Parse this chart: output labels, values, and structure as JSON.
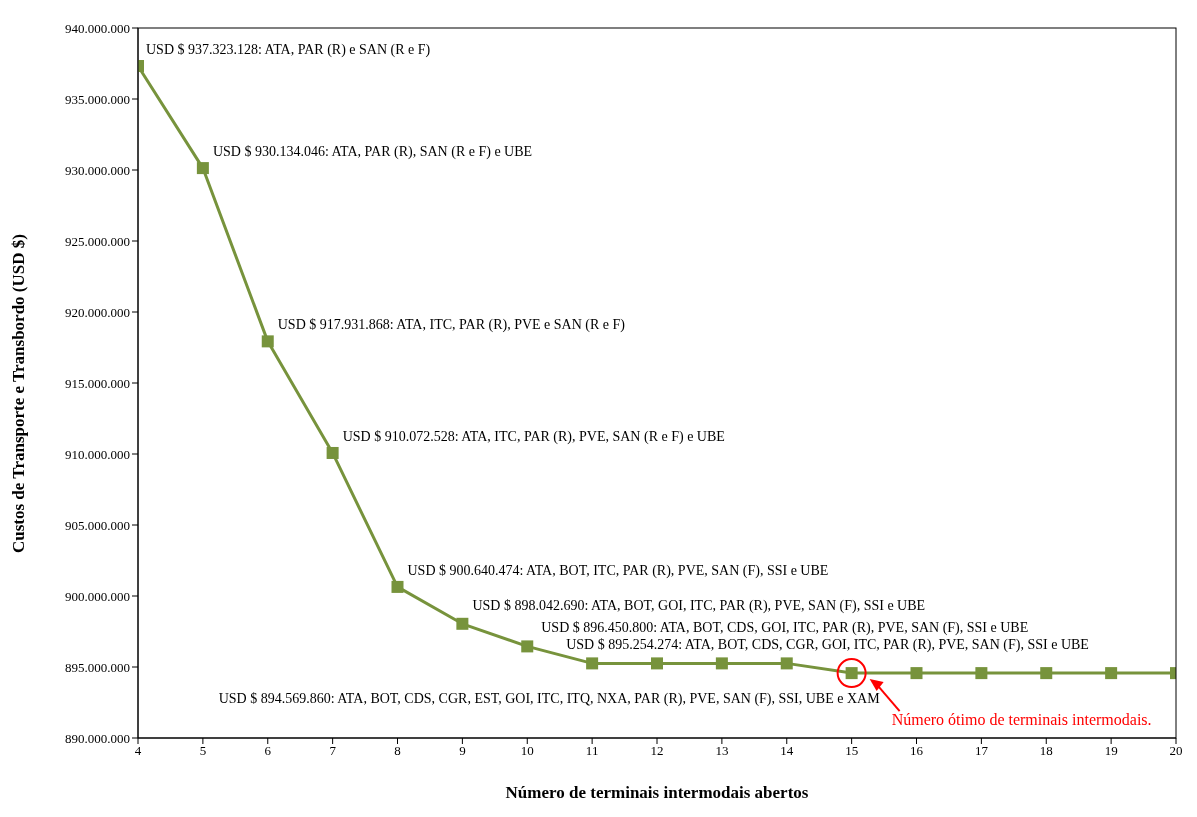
{
  "chart_data": {
    "type": "line",
    "xlabel": "Número de terminais intermodais abertos",
    "ylabel": "Custos de Transporte e Transbordo (USD $)",
    "x": [
      4,
      5,
      6,
      7,
      8,
      9,
      10,
      11,
      12,
      13,
      14,
      15,
      16,
      17,
      18,
      19,
      20
    ],
    "series": [
      {
        "color": "#77933c",
        "values": [
          937323128,
          930134046,
          917931868,
          910072528,
          900640474,
          898042690,
          896450800,
          895254274,
          895254274,
          895254274,
          895254274,
          894569860,
          894569860,
          894569860,
          894569860,
          894569860,
          894569860
        ]
      }
    ],
    "xlim": [
      4,
      20
    ],
    "xticks": [
      4,
      5,
      6,
      7,
      8,
      9,
      10,
      11,
      12,
      13,
      14,
      15,
      16,
      17,
      18,
      19,
      20
    ],
    "ylim": [
      890000000,
      940000000
    ],
    "yticks": [
      {
        "value": 890000000,
        "label": "890.000.000"
      },
      {
        "value": 895000000,
        "label": "895.000.000"
      },
      {
        "value": 900000000,
        "label": "900.000.000"
      },
      {
        "value": 905000000,
        "label": "905.000.000"
      },
      {
        "value": 910000000,
        "label": "910.000.000"
      },
      {
        "value": 915000000,
        "label": "915.000.000"
      },
      {
        "value": 920000000,
        "label": "920.000.000"
      },
      {
        "value": 925000000,
        "label": "925.000.000"
      },
      {
        "value": 930000000,
        "label": "930.000.000"
      },
      {
        "value": 935000000,
        "label": "935.000.000"
      },
      {
        "value": 940000000,
        "label": "940.000.000"
      }
    ],
    "marker": "square",
    "line_style": "solid",
    "grid": false,
    "annotations": [
      {
        "text": "USD $ 937.323.128: ATA, PAR (R) e SAN (R e F)",
        "x": 4,
        "y": 937323128
      },
      {
        "text": "USD $ 930.134.046: ATA, PAR (R), SAN (R e F) e UBE",
        "x": 5,
        "y": 930134046
      },
      {
        "text": "USD $ 917.931.868: ATA, ITC, PAR (R), PVE e SAN (R e F)",
        "x": 6,
        "y": 917931868
      },
      {
        "text": "USD $ 910.072.528: ATA, ITC, PAR (R), PVE, SAN (R e F) e UBE",
        "x": 7,
        "y": 910072528
      },
      {
        "text": "USD $ 900.640.474: ATA, BOT, ITC, PAR (R), PVE, SAN (F), SSI e UBE",
        "x": 8,
        "y": 900640474
      },
      {
        "text": "USD $ 898.042.690: ATA, BOT, GOI, ITC, PAR (R), PVE, SAN (F), SSI e UBE",
        "x": 9,
        "y": 898042690
      },
      {
        "text": "USD $ 896.450.800: ATA, BOT, CDS, GOI, ITC, PAR (R), PVE, SAN (F), SSI e UBE",
        "x": 10,
        "y": 896450800
      },
      {
        "text": "USD $ 895.254.274: ATA, BOT, CDS, CGR, GOI, ITC, PAR (R), PVE, SAN (F), SSI e UBE",
        "x": 11,
        "y": 895254274
      },
      {
        "text": "USD $ 894.569.860: ATA, BOT, CDS, CGR, EST, GOI, ITC, ITQ, NXA, PAR (R), PVE, SAN (F), SSI, UBE e XAM",
        "x": 15,
        "y": 894569860
      },
      "Número ótimo de terminais intermodais."
    ]
  }
}
